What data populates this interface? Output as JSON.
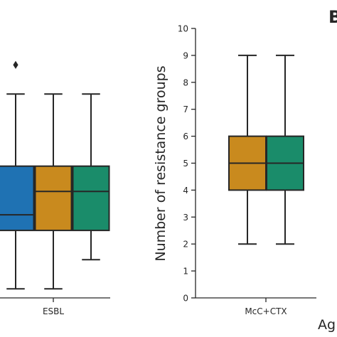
{
  "panel_letter": "B",
  "chart_data": [
    {
      "type": "box",
      "categories": [
        "ESBL"
      ],
      "xlabel": "",
      "ylabel": "",
      "series": [
        {
          "name": "",
          "color": "#1f72b3",
          "stats": {
            "whislo": 0.5,
            "q1": 3.5,
            "median": 4.3,
            "q3": 6.8,
            "whishi": 10.5,
            "fliers": [
              12.0
            ]
          }
        },
        {
          "name": "",
          "color": "#c98a1e",
          "stats": {
            "whislo": 0.5,
            "q1": 3.5,
            "median": 5.5,
            "q3": 6.8,
            "whishi": 10.5,
            "fliers": []
          }
        },
        {
          "name": "",
          "color": "#1a8c6a",
          "stats": {
            "whislo": 2.0,
            "q1": 3.5,
            "median": 5.5,
            "q3": 6.8,
            "whishi": 10.5,
            "fliers": []
          }
        }
      ]
    },
    {
      "type": "box",
      "categories": [
        "McC+CTX"
      ],
      "xlabel": "Ag",
      "ylabel": "Number of resistance groups",
      "ylim": [
        0,
        10
      ],
      "yticks": [
        0,
        1,
        2,
        3,
        4,
        5,
        6,
        7,
        8,
        9,
        10
      ],
      "series": [
        {
          "name": "",
          "color": "#c98a1e",
          "stats": {
            "whislo": 2,
            "q1": 4,
            "median": 5,
            "q3": 6,
            "whishi": 9,
            "fliers": []
          }
        },
        {
          "name": "",
          "color": "#1a8c6a",
          "stats": {
            "whislo": 2,
            "q1": 4,
            "median": 5,
            "q3": 6,
            "whishi": 9,
            "fliers": []
          }
        }
      ]
    }
  ]
}
